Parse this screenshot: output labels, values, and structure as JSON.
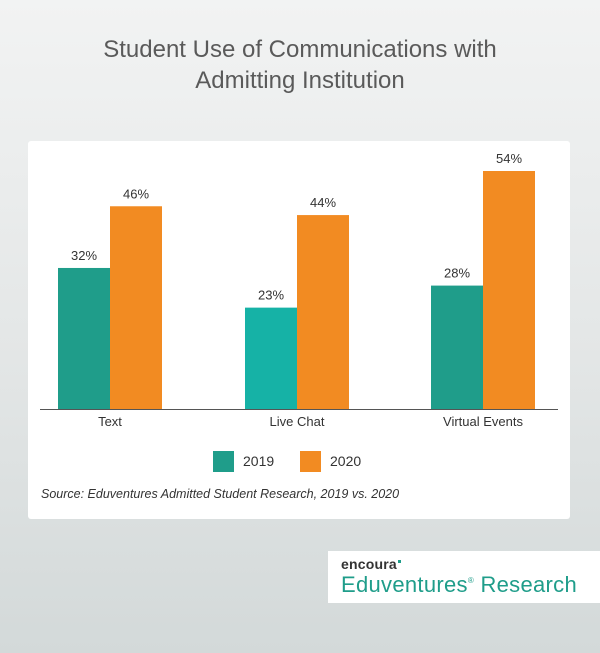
{
  "title_line1": "Student Use of Communications with",
  "title_line2": "Admitting Institution",
  "colors": {
    "series_2019": "#1f9d8a",
    "series_2020": "#f28b22",
    "live_chat_2019": "#16b2a6"
  },
  "chart_data": {
    "type": "bar",
    "title": "Student Use of Communications with Admitting Institution",
    "categories": [
      "Text",
      "Live Chat",
      "Virtual Events"
    ],
    "series": [
      {
        "name": "2019",
        "values": [
          32,
          23,
          28
        ],
        "labels": [
          "32%",
          "23%",
          "28%"
        ]
      },
      {
        "name": "2020",
        "values": [
          46,
          44,
          54
        ],
        "labels": [
          "46%",
          "44%",
          "54%"
        ]
      }
    ],
    "ylim": [
      0,
      54
    ],
    "grid": false,
    "legend": "bottom-center"
  },
  "legend": {
    "label_2019": "2019",
    "label_2020": "2020"
  },
  "source": "Source: Eduventures Admitted Student Research, 2019 vs. 2020",
  "brand": {
    "top": "encoura",
    "main": "Eduventures",
    "mark": "®",
    "suffix": " Research"
  }
}
